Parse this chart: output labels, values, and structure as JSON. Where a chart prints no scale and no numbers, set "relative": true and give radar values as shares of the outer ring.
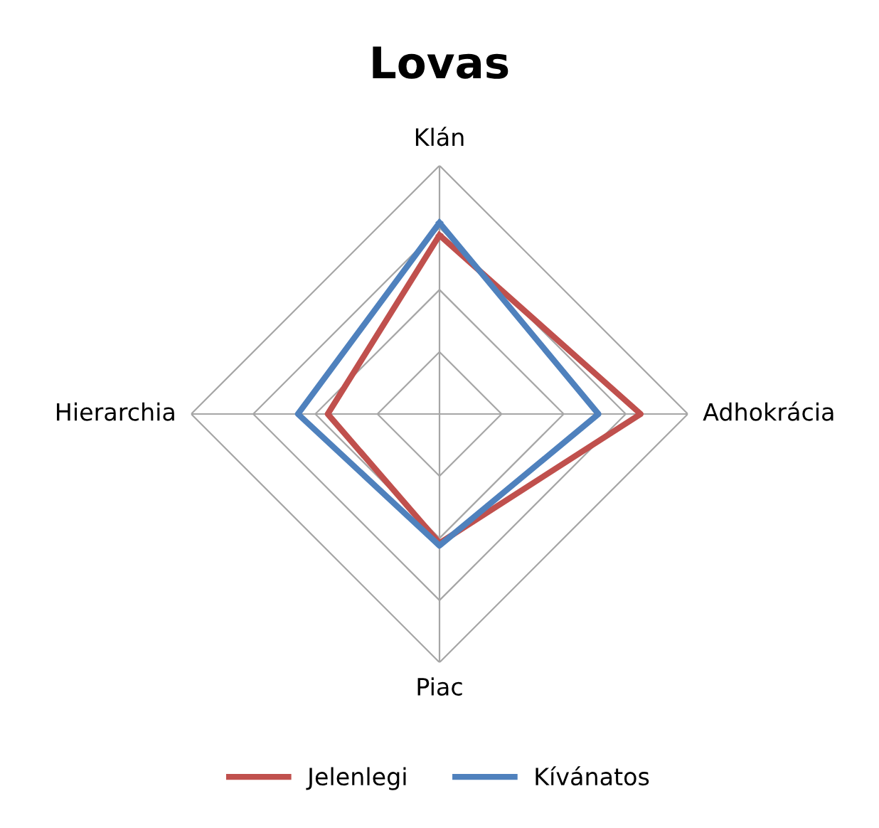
{
  "chart_data": {
    "type": "radar",
    "title": "Lovas",
    "categories": [
      "Klán",
      "Adhokrácia",
      "Piac",
      "Hierarchia"
    ],
    "relative": true,
    "grid": true,
    "legend": "bottom",
    "series": [
      {
        "name": "Jelenlegi",
        "color": "#c0504d",
        "values": [
          0.72,
          0.81,
          0.52,
          0.45
        ]
      },
      {
        "name": "Kívánatos",
        "color": "#4f81bd",
        "values": [
          0.77,
          0.64,
          0.53,
          0.57
        ]
      }
    ]
  }
}
